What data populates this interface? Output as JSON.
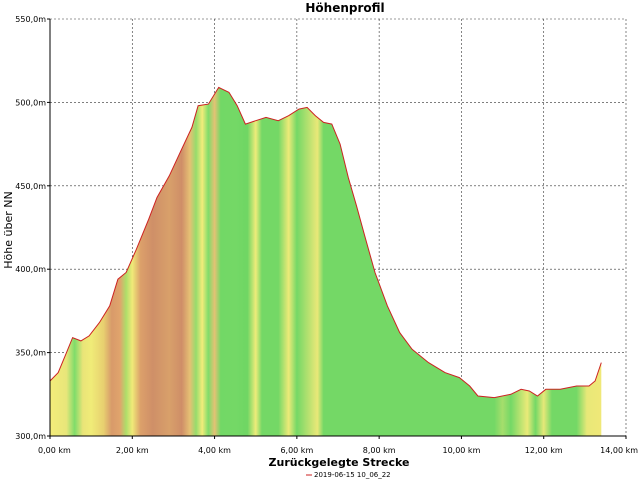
{
  "chart_data": {
    "type": "area",
    "title": "Höhenprofil",
    "xlabel": "Zurückgelegte Strecke",
    "ylabel": "Höhe über NN",
    "xlim": [
      0,
      14
    ],
    "ylim": [
      300,
      550
    ],
    "x_ticks": [
      {
        "value": 0,
        "label": "0,00 km"
      },
      {
        "value": 2,
        "label": "2,00 km"
      },
      {
        "value": 4,
        "label": "4,00 km"
      },
      {
        "value": 6,
        "label": "6,00 km"
      },
      {
        "value": 8,
        "label": "8,00 km"
      },
      {
        "value": 10,
        "label": "10,00 km"
      },
      {
        "value": 12,
        "label": "12,00 km"
      },
      {
        "value": 14,
        "label": "14,00 km"
      }
    ],
    "y_ticks": [
      {
        "value": 300,
        "label": "300,0m"
      },
      {
        "value": 350,
        "label": "350,0m"
      },
      {
        "value": 400,
        "label": "400,0m"
      },
      {
        "value": 450,
        "label": "450,0m"
      },
      {
        "value": 500,
        "label": "500,0m"
      },
      {
        "value": 550,
        "label": "550,0m"
      }
    ],
    "grid": true,
    "legend_position": "bottom",
    "series": [
      {
        "name": "2019-06-15 10_06_22",
        "line_color": "#cc2222",
        "points": [
          [
            0.0,
            333
          ],
          [
            0.2,
            338
          ],
          [
            0.4,
            350
          ],
          [
            0.55,
            359
          ],
          [
            0.75,
            357
          ],
          [
            0.95,
            360
          ],
          [
            1.2,
            368
          ],
          [
            1.45,
            378
          ],
          [
            1.65,
            394
          ],
          [
            1.85,
            398
          ],
          [
            2.1,
            412
          ],
          [
            2.4,
            430
          ],
          [
            2.6,
            443
          ],
          [
            2.9,
            456
          ],
          [
            3.2,
            472
          ],
          [
            3.45,
            485
          ],
          [
            3.6,
            498
          ],
          [
            3.85,
            499
          ],
          [
            4.1,
            509
          ],
          [
            4.35,
            506
          ],
          [
            4.55,
            498
          ],
          [
            4.75,
            487
          ],
          [
            5.0,
            489
          ],
          [
            5.25,
            491
          ],
          [
            5.55,
            489
          ],
          [
            5.8,
            492
          ],
          [
            6.05,
            496
          ],
          [
            6.25,
            497
          ],
          [
            6.45,
            492
          ],
          [
            6.65,
            488
          ],
          [
            6.85,
            487
          ],
          [
            7.05,
            475
          ],
          [
            7.25,
            455
          ],
          [
            7.45,
            438
          ],
          [
            7.65,
            420
          ],
          [
            7.9,
            398
          ],
          [
            8.2,
            378
          ],
          [
            8.5,
            362
          ],
          [
            8.8,
            352
          ],
          [
            9.2,
            344
          ],
          [
            9.6,
            338
          ],
          [
            9.95,
            335
          ],
          [
            10.2,
            330
          ],
          [
            10.4,
            324
          ],
          [
            10.8,
            323
          ],
          [
            11.2,
            325
          ],
          [
            11.45,
            328
          ],
          [
            11.65,
            327
          ],
          [
            11.85,
            324
          ],
          [
            12.05,
            328
          ],
          [
            12.4,
            328
          ],
          [
            12.8,
            330
          ],
          [
            13.1,
            330
          ],
          [
            13.25,
            333
          ],
          [
            13.4,
            344
          ]
        ],
        "gradient_stops": [
          [
            0.0,
            "#f4ec7a"
          ],
          [
            0.4,
            "#e8e67a"
          ],
          [
            0.6,
            "#7fdc6a"
          ],
          [
            0.8,
            "#eae478"
          ],
          [
            1.0,
            "#f0ec78"
          ],
          [
            1.3,
            "#e8d070"
          ],
          [
            1.5,
            "#d89a6a"
          ],
          [
            1.7,
            "#e0a46c"
          ],
          [
            1.85,
            "#aede6a"
          ],
          [
            2.0,
            "#f0ea78"
          ],
          [
            2.2,
            "#dca06a"
          ],
          [
            2.5,
            "#cf8f68"
          ],
          [
            2.9,
            "#d8a06a"
          ],
          [
            3.2,
            "#cf8e68"
          ],
          [
            3.4,
            "#e6c074"
          ],
          [
            3.55,
            "#96dc6c"
          ],
          [
            3.7,
            "#f2ec7a"
          ],
          [
            3.85,
            "#7fdc6a"
          ],
          [
            4.0,
            "#e4c274"
          ],
          [
            4.15,
            "#72d866"
          ],
          [
            4.5,
            "#74d866"
          ],
          [
            4.8,
            "#6fd664"
          ],
          [
            5.0,
            "#eeec7a"
          ],
          [
            5.15,
            "#74d866"
          ],
          [
            5.55,
            "#74d866"
          ],
          [
            5.8,
            "#ecea78"
          ],
          [
            6.0,
            "#74d866"
          ],
          [
            6.5,
            "#eae878"
          ],
          [
            6.65,
            "#74d866"
          ],
          [
            8.0,
            "#74d866"
          ],
          [
            10.8,
            "#74d866"
          ],
          [
            11.0,
            "#a6de6c"
          ],
          [
            11.2,
            "#74d866"
          ],
          [
            11.6,
            "#eaea78"
          ],
          [
            11.8,
            "#74d866"
          ],
          [
            12.0,
            "#e6e878"
          ],
          [
            12.2,
            "#74d866"
          ],
          [
            12.8,
            "#74d866"
          ],
          [
            13.05,
            "#e8e878"
          ],
          [
            13.4,
            "#f0e878"
          ]
        ]
      }
    ]
  }
}
